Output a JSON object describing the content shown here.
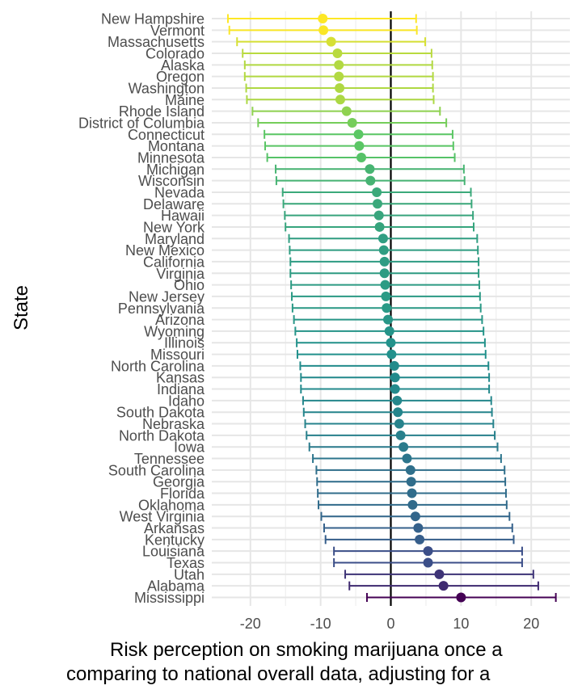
{
  "chart_data": {
    "type": "scatter",
    "subtype": "point-range",
    "ylabel": "State",
    "xlabel_lines": [
      "Risk perception on smoking marijuana once a",
      "comparing to national overall data, adjusting for a"
    ],
    "xlim": [
      -25.5,
      25.5
    ],
    "x_ticks": [
      -20,
      -10,
      0,
      10,
      20
    ],
    "x_tick_labels": [
      "-20",
      "-10",
      "0",
      "10",
      "20"
    ],
    "reference_line_x": 0,
    "grid": true,
    "legend": "none",
    "palette": [
      "#440154",
      "#3b528b",
      "#21908c",
      "#5dc963",
      "#fde725"
    ],
    "states": [
      {
        "state": "New Hampshire",
        "estimate": -9.7,
        "lower": -23.2,
        "upper": 3.6
      },
      {
        "state": "Vermont",
        "estimate": -9.6,
        "lower": -23.0,
        "upper": 3.7
      },
      {
        "state": "Massachusetts",
        "estimate": -8.5,
        "lower": -21.9,
        "upper": 4.9
      },
      {
        "state": "Colorado",
        "estimate": -7.6,
        "lower": -21.1,
        "upper": 5.8
      },
      {
        "state": "Alaska",
        "estimate": -7.4,
        "lower": -20.8,
        "upper": 5.9
      },
      {
        "state": "Oregon",
        "estimate": -7.4,
        "lower": -20.8,
        "upper": 6.0
      },
      {
        "state": "Washington",
        "estimate": -7.3,
        "lower": -20.6,
        "upper": 6.0
      },
      {
        "state": "Maine",
        "estimate": -7.2,
        "lower": -20.5,
        "upper": 6.1
      },
      {
        "state": "Rhode Island",
        "estimate": -6.3,
        "lower": -19.7,
        "upper": 7.0
      },
      {
        "state": "District of Columbia",
        "estimate": -5.5,
        "lower": -18.9,
        "upper": 7.9
      },
      {
        "state": "Connecticut",
        "estimate": -4.6,
        "lower": -18.0,
        "upper": 8.8
      },
      {
        "state": "Montana",
        "estimate": -4.5,
        "lower": -17.9,
        "upper": 8.9
      },
      {
        "state": "Minnesota",
        "estimate": -4.2,
        "lower": -17.6,
        "upper": 9.1
      },
      {
        "state": "Michigan",
        "estimate": -3.0,
        "lower": -16.4,
        "upper": 10.4
      },
      {
        "state": "Wisconsin",
        "estimate": -2.9,
        "lower": -16.3,
        "upper": 10.5
      },
      {
        "state": "Nevada",
        "estimate": -2.0,
        "lower": -15.4,
        "upper": 11.4
      },
      {
        "state": "Delaware",
        "estimate": -1.9,
        "lower": -15.3,
        "upper": 11.5
      },
      {
        "state": "Hawaii",
        "estimate": -1.7,
        "lower": -15.1,
        "upper": 11.7
      },
      {
        "state": "New York",
        "estimate": -1.6,
        "lower": -15.0,
        "upper": 11.8
      },
      {
        "state": "Maryland",
        "estimate": -1.1,
        "lower": -14.5,
        "upper": 12.3
      },
      {
        "state": "New Mexico",
        "estimate": -1.0,
        "lower": -14.4,
        "upper": 12.4
      },
      {
        "state": "California",
        "estimate": -0.9,
        "lower": -14.3,
        "upper": 12.5
      },
      {
        "state": "Virginia",
        "estimate": -0.9,
        "lower": -14.3,
        "upper": 12.5
      },
      {
        "state": "Ohio",
        "estimate": -0.8,
        "lower": -14.2,
        "upper": 12.6
      },
      {
        "state": "New Jersey",
        "estimate": -0.7,
        "lower": -14.1,
        "upper": 12.7
      },
      {
        "state": "Pennsylvania",
        "estimate": -0.6,
        "lower": -14.0,
        "upper": 12.8
      },
      {
        "state": "Arizona",
        "estimate": -0.4,
        "lower": -13.8,
        "upper": 13.0
      },
      {
        "state": "Wyoming",
        "estimate": -0.2,
        "lower": -13.6,
        "upper": 13.2
      },
      {
        "state": "Illinois",
        "estimate": 0.0,
        "lower": -13.4,
        "upper": 13.4
      },
      {
        "state": "Missouri",
        "estimate": 0.1,
        "lower": -13.3,
        "upper": 13.5
      },
      {
        "state": "North Carolina",
        "estimate": 0.5,
        "lower": -12.9,
        "upper": 13.9
      },
      {
        "state": "Kansas",
        "estimate": 0.6,
        "lower": -12.8,
        "upper": 14.0
      },
      {
        "state": "Indiana",
        "estimate": 0.6,
        "lower": -12.8,
        "upper": 14.0
      },
      {
        "state": "Idaho",
        "estimate": 0.9,
        "lower": -12.5,
        "upper": 14.3
      },
      {
        "state": "South Dakota",
        "estimate": 1.0,
        "lower": -12.4,
        "upper": 14.4
      },
      {
        "state": "Nebraska",
        "estimate": 1.2,
        "lower": -12.2,
        "upper": 14.6
      },
      {
        "state": "North Dakota",
        "estimate": 1.4,
        "lower": -12.0,
        "upper": 14.8
      },
      {
        "state": "Iowa",
        "estimate": 1.8,
        "lower": -11.6,
        "upper": 15.2
      },
      {
        "state": "Tennessee",
        "estimate": 2.3,
        "lower": -11.1,
        "upper": 15.7
      },
      {
        "state": "South Carolina",
        "estimate": 2.8,
        "lower": -10.6,
        "upper": 16.2
      },
      {
        "state": "Georgia",
        "estimate": 2.9,
        "lower": -10.5,
        "upper": 16.3
      },
      {
        "state": "Florida",
        "estimate": 3.0,
        "lower": -10.4,
        "upper": 16.4
      },
      {
        "state": "Oklahoma",
        "estimate": 3.1,
        "lower": -10.3,
        "upper": 16.5
      },
      {
        "state": "West Virginia",
        "estimate": 3.5,
        "lower": -9.9,
        "upper": 16.9
      },
      {
        "state": "Arkansas",
        "estimate": 3.9,
        "lower": -9.5,
        "upper": 17.3
      },
      {
        "state": "Kentucky",
        "estimate": 4.1,
        "lower": -9.3,
        "upper": 17.5
      },
      {
        "state": "Louisiana",
        "estimate": 5.3,
        "lower": -8.1,
        "upper": 18.7
      },
      {
        "state": "Texas",
        "estimate": 5.3,
        "lower": -8.1,
        "upper": 18.7
      },
      {
        "state": "Utah",
        "estimate": 6.9,
        "lower": -6.5,
        "upper": 20.3
      },
      {
        "state": "Alabama",
        "estimate": 7.5,
        "lower": -5.9,
        "upper": 21.0
      },
      {
        "state": "Mississippi",
        "estimate": 10.0,
        "lower": -3.4,
        "upper": 23.5
      }
    ]
  }
}
